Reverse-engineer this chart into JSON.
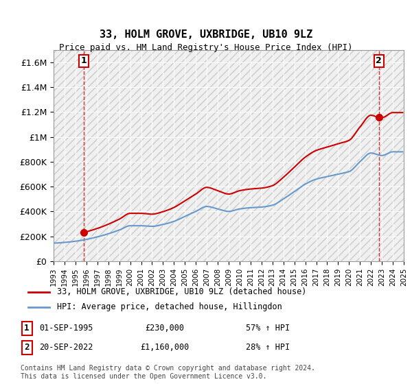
{
  "title": "33, HOLM GROVE, UXBRIDGE, UB10 9LZ",
  "subtitle": "Price paid vs. HM Land Registry's House Price Index (HPI)",
  "ylabel": "",
  "ylim": [
    0,
    1700000
  ],
  "yticks": [
    0,
    200000,
    400000,
    600000,
    800000,
    1000000,
    1200000,
    1400000,
    1600000
  ],
  "ytick_labels": [
    "£0",
    "£200K",
    "£400K",
    "£600K",
    "£800K",
    "£1M",
    "£1.2M",
    "£1.4M",
    "£1.6M"
  ],
  "background_color": "#ffffff",
  "plot_bg_color": "#f0f0f0",
  "hatch_color": "#d0d0d0",
  "grid_color": "#ffffff",
  "line1_color": "#cc0000",
  "line2_color": "#6699cc",
  "annotation1_color": "#cc0000",
  "annotation2_color": "#cc0000",
  "point1_x": 1995.75,
  "point1_y": 230000,
  "point2_x": 2022.72,
  "point2_y": 1160000,
  "annotation1_label": "1",
  "annotation2_label": "2",
  "legend1_label": "33, HOLM GROVE, UXBRIDGE, UB10 9LZ (detached house)",
  "legend2_label": "HPI: Average price, detached house, Hillingdon",
  "table_row1": [
    "1",
    "01-SEP-1995",
    "£230,000",
    "57% ↑ HPI"
  ],
  "table_row2": [
    "2",
    "20-SEP-2022",
    "£1,160,000",
    "28% ↑ HPI"
  ],
  "footnote": "Contains HM Land Registry data © Crown copyright and database right 2024.\nThis data is licensed under the Open Government Licence v3.0.",
  "xmin": 1993,
  "xmax": 2025,
  "xticks": [
    1993,
    1994,
    1995,
    1996,
    1997,
    1998,
    1999,
    2000,
    2001,
    2002,
    2003,
    2004,
    2005,
    2006,
    2007,
    2008,
    2009,
    2010,
    2011,
    2012,
    2013,
    2014,
    2015,
    2016,
    2017,
    2018,
    2019,
    2020,
    2021,
    2022,
    2023,
    2024,
    2025
  ]
}
